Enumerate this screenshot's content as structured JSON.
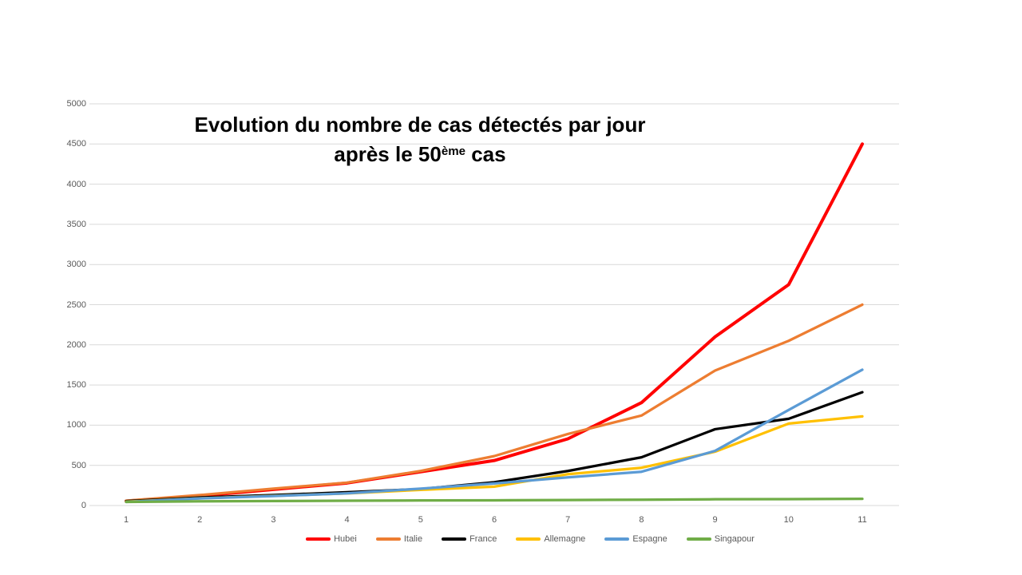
{
  "title": {
    "line1": "Evolution du nombre de cas détectés par jour",
    "line2_prefix": "après le 50",
    "line2_superscript": "ème",
    "line2_suffix": " cas"
  },
  "chart_data": {
    "type": "line",
    "title": "Evolution du nombre de cas détectés par jour après le 50ème cas",
    "xlabel": "",
    "ylabel": "",
    "categories": [
      1,
      2,
      3,
      4,
      5,
      6,
      7,
      8,
      9,
      10,
      11
    ],
    "ylim": [
      0,
      5000
    ],
    "ytick_step": 500,
    "grid": true,
    "legend_position": "bottom",
    "colors": {
      "gridline": "#D9D9D9",
      "axis_text": "#595959",
      "legend_text": "#595959",
      "title_text": "#000000"
    },
    "series": [
      {
        "name": "Hubei",
        "color": "#FF0000",
        "values": [
          55,
          120,
          200,
          280,
          420,
          560,
          830,
          1280,
          2100,
          2750,
          4500
        ]
      },
      {
        "name": "Italie",
        "color": "#ED7D31",
        "values": [
          60,
          130,
          210,
          285,
          430,
          615,
          890,
          1120,
          1680,
          2050,
          2500
        ]
      },
      {
        "name": "France",
        "color": "#000000",
        "values": [
          55,
          100,
          130,
          165,
          205,
          290,
          430,
          600,
          950,
          1080,
          1410
        ]
      },
      {
        "name": "Allemagne",
        "color": "#FFC000",
        "values": [
          48,
          90,
          120,
          150,
          195,
          235,
          390,
          470,
          670,
          1020,
          1110
        ]
      },
      {
        "name": "Espagne",
        "color": "#5B9BD5",
        "values": [
          45,
          88,
          118,
          152,
          210,
          275,
          350,
          420,
          680,
          1190,
          1690
        ]
      },
      {
        "name": "Singapour",
        "color": "#70AD47",
        "values": [
          45,
          52,
          56,
          60,
          63,
          65,
          68,
          72,
          78,
          80,
          83
        ]
      }
    ]
  }
}
